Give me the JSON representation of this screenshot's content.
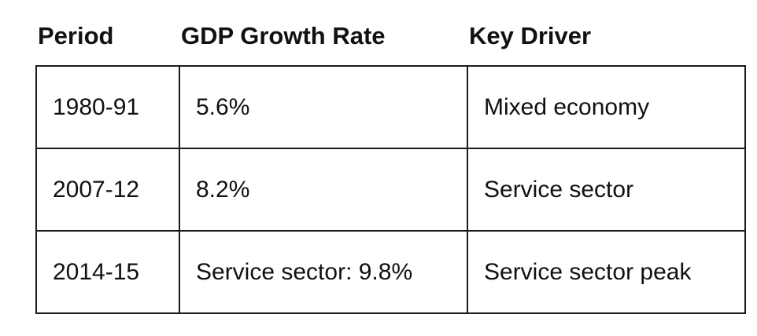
{
  "table": {
    "headers": [
      "Period",
      "GDP Growth Rate",
      "Key Driver"
    ],
    "rows": [
      [
        "1980-91",
        "5.6%",
        "Mixed economy"
      ],
      [
        "2007-12",
        "8.2%",
        "Service sector"
      ],
      [
        "2014-15",
        "Service sector: 9.8%",
        "Service sector peak"
      ]
    ]
  }
}
